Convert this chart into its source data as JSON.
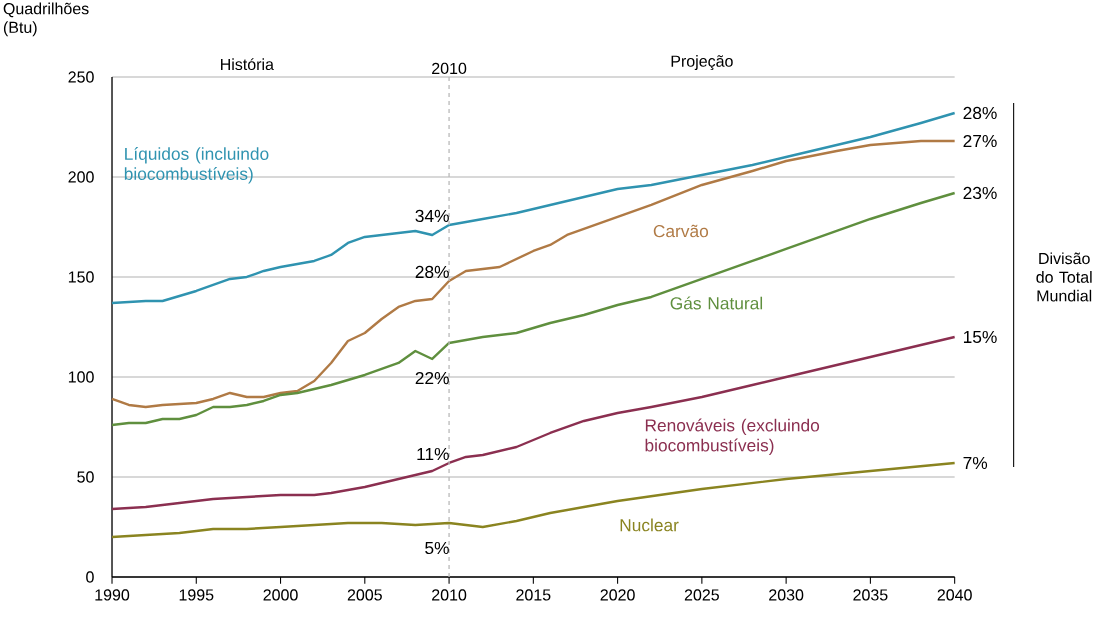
{
  "chart_data": {
    "type": "line",
    "ylabel": "Quadrilhões (Btu)",
    "xlim": [
      1990,
      2040
    ],
    "xticks": [
      1990,
      1995,
      2000,
      2005,
      2010,
      2015,
      2020,
      2025,
      2030,
      2035,
      2040
    ],
    "ylim": [
      0,
      250
    ],
    "yticks": [
      0,
      50,
      100,
      150,
      200,
      250
    ],
    "grid": "y",
    "legend": false,
    "marker": "none",
    "line_style": "solid",
    "ref_lines": [
      {
        "axis": "x",
        "value": 2010,
        "label": "2010",
        "color": "#bbbbbb",
        "line_style": "dashed"
      }
    ],
    "series": [
      {
        "name": "Líquidos (incluindo biocombustíveis)",
        "color": "#2f93b0",
        "x": [
          1990,
          1992,
          1993,
          1995,
          1997,
          1998,
          1999,
          2000,
          2002,
          2003,
          2004,
          2005,
          2006,
          2007,
          2008,
          2009,
          2010,
          2012,
          2014,
          2016,
          2018,
          2020,
          2022,
          2025,
          2028,
          2030,
          2035,
          2038,
          2040
        ],
        "values": [
          137,
          138,
          138,
          143,
          149,
          150,
          153,
          155,
          158,
          161,
          167,
          170,
          171,
          172,
          173,
          171,
          176,
          179,
          182,
          186,
          190,
          194,
          196,
          201,
          206,
          210,
          220,
          227,
          232
        ]
      },
      {
        "name": "Carvão",
        "color": "#b07a45",
        "x": [
          1990,
          1991,
          1992,
          1993,
          1995,
          1996,
          1997,
          1998,
          1999,
          2000,
          2001,
          2002,
          2003,
          2004,
          2005,
          2006,
          2007,
          2008,
          2009,
          2010,
          2011,
          2012,
          2013,
          2015,
          2016,
          2017,
          2020,
          2022,
          2025,
          2028,
          2030,
          2033,
          2035,
          2038,
          2040
        ],
        "values": [
          89,
          86,
          85,
          86,
          87,
          89,
          92,
          90,
          90,
          92,
          93,
          98,
          107,
          118,
          122,
          129,
          135,
          138,
          139,
          148,
          153,
          154,
          155,
          163,
          166,
          171,
          180,
          186,
          196,
          203,
          208,
          213,
          216,
          218,
          218
        ]
      },
      {
        "name": "Gás Natural",
        "color": "#5f8f3e",
        "x": [
          1990,
          1991,
          1992,
          1993,
          1994,
          1995,
          1996,
          1997,
          1998,
          1999,
          2000,
          2001,
          2002,
          2003,
          2005,
          2007,
          2008,
          2009,
          2010,
          2012,
          2014,
          2016,
          2018,
          2020,
          2022,
          2025,
          2028,
          2030,
          2033,
          2035,
          2038,
          2040
        ],
        "values": [
          76,
          77,
          77,
          79,
          79,
          81,
          85,
          85,
          86,
          88,
          91,
          92,
          94,
          96,
          101,
          107,
          113,
          109,
          117,
          120,
          122,
          127,
          131,
          136,
          140,
          149,
          158,
          164,
          173,
          179,
          187,
          192
        ]
      },
      {
        "name": "Renováveis (excluindo biocombustíveis)",
        "color": "#8b2f50",
        "x": [
          1990,
          1992,
          1994,
          1996,
          1998,
          2000,
          2002,
          2003,
          2005,
          2007,
          2008,
          2009,
          2010,
          2011,
          2012,
          2014,
          2016,
          2018,
          2020,
          2022,
          2025,
          2028,
          2030,
          2035,
          2040
        ],
        "values": [
          34,
          35,
          37,
          39,
          40,
          41,
          41,
          42,
          45,
          49,
          51,
          53,
          57,
          60,
          61,
          65,
          72,
          78,
          82,
          85,
          90,
          96,
          100,
          110,
          120
        ]
      },
      {
        "name": "Nuclear",
        "color": "#8a8420",
        "x": [
          1990,
          1992,
          1994,
          1996,
          1998,
          2000,
          2002,
          2004,
          2006,
          2008,
          2010,
          2012,
          2014,
          2016,
          2018,
          2020,
          2025,
          2030,
          2035,
          2040
        ],
        "values": [
          20,
          21,
          22,
          24,
          24,
          25,
          26,
          27,
          27,
          26,
          27,
          25,
          28,
          32,
          35,
          38,
          44,
          49,
          53,
          57
        ]
      }
    ],
    "annotations": [
      "34%",
      "28%",
      "22%",
      "11%",
      "5%",
      "28%",
      "27%",
      "23%",
      "15%",
      "7%",
      "História",
      "Projeção",
      "Divisão do Total Mundial"
    ]
  }
}
